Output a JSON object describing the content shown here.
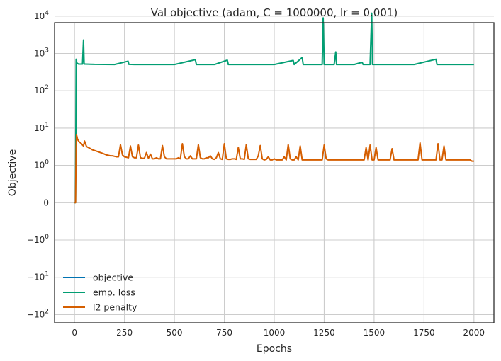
{
  "chart_data": {
    "type": "line",
    "title": "Val objective (adam, C = 1000000, lr = 0.001)",
    "xlabel": "Epochs",
    "ylabel": "Objective",
    "xlim": [
      -100,
      2100
    ],
    "x_ticks": [
      0,
      250,
      500,
      750,
      1000,
      1250,
      1500,
      1750,
      2000
    ],
    "x_tick_labels": [
      "0",
      "250",
      "500",
      "750",
      "1000",
      "1250",
      "1500",
      "1750",
      "2000"
    ],
    "y_scale": "symlog",
    "y_ticks": [
      10000,
      1000,
      100,
      10,
      1,
      0,
      -1,
      -10,
      -100
    ],
    "y_tick_labels": [
      {
        "base": "10",
        "exp": "4"
      },
      {
        "base": "10",
        "exp": "3"
      },
      {
        "base": "10",
        "exp": "2"
      },
      {
        "base": "10",
        "exp": "1"
      },
      {
        "base": "10",
        "exp": "0"
      },
      {
        "base": "0",
        "exp": ""
      },
      {
        "base": "−10",
        "exp": "0"
      },
      {
        "base": "−10",
        "exp": "1"
      },
      {
        "base": "−10",
        "exp": "2"
      }
    ],
    "grid": true,
    "legend_position": "lower-left",
    "series": [
      {
        "name": "objective",
        "color": "#0173b2",
        "x": [],
        "y": []
      },
      {
        "name": "emp. loss",
        "color": "#029e73",
        "x": [
          0,
          5,
          8,
          12,
          20,
          40,
          45,
          48,
          55,
          100,
          200,
          268,
          272,
          300,
          400,
          500,
          605,
          610,
          700,
          765,
          770,
          800,
          900,
          1000,
          1095,
          1100,
          1140,
          1145,
          1200,
          1240,
          1245,
          1250,
          1300,
          1308,
          1312,
          1400,
          1440,
          1445,
          1480,
          1488,
          1492,
          1500,
          1600,
          1700,
          1810,
          1815,
          1900,
          2000
        ],
        "y": [
          0,
          0,
          700,
          550,
          520,
          520,
          2300,
          520,
          520,
          510,
          505,
          620,
          510,
          505,
          505,
          505,
          680,
          505,
          505,
          660,
          505,
          505,
          505,
          505,
          650,
          505,
          780,
          505,
          505,
          505,
          9000,
          505,
          505,
          1100,
          505,
          505,
          580,
          505,
          505,
          12000,
          505,
          505,
          505,
          505,
          700,
          505,
          505,
          505
        ]
      },
      {
        "name": "l2 penalty",
        "color": "#d55e00",
        "x": [
          0,
          5,
          8,
          10,
          12,
          15,
          20,
          25,
          30,
          35,
          40,
          45,
          50,
          60,
          70,
          80,
          90,
          100,
          110,
          120,
          130,
          140,
          150,
          160,
          170,
          180,
          190,
          200,
          210,
          220,
          230,
          240,
          250,
          260,
          270,
          280,
          290,
          300,
          310,
          320,
          330,
          340,
          350,
          360,
          370,
          380,
          390,
          400,
          410,
          420,
          430,
          440,
          450,
          460,
          470,
          480,
          490,
          500,
          510,
          520,
          530,
          540,
          550,
          560,
          570,
          580,
          590,
          600,
          610,
          620,
          630,
          640,
          650,
          660,
          670,
          680,
          690,
          700,
          710,
          720,
          730,
          740,
          750,
          760,
          770,
          780,
          790,
          800,
          810,
          820,
          830,
          840,
          850,
          860,
          870,
          880,
          890,
          900,
          910,
          920,
          930,
          940,
          950,
          960,
          970,
          980,
          990,
          1000,
          1010,
          1020,
          1030,
          1040,
          1050,
          1060,
          1070,
          1080,
          1090,
          1100,
          1110,
          1120,
          1130,
          1140,
          1150,
          1160,
          1170,
          1180,
          1190,
          1200,
          1210,
          1220,
          1230,
          1240,
          1250,
          1260,
          1270,
          1280,
          1290,
          1300,
          1310,
          1320,
          1330,
          1340,
          1350,
          1360,
          1370,
          1380,
          1390,
          1400,
          1410,
          1420,
          1430,
          1440,
          1450,
          1460,
          1470,
          1480,
          1490,
          1500,
          1510,
          1520,
          1530,
          1540,
          1550,
          1560,
          1570,
          1580,
          1590,
          1600,
          1610,
          1620,
          1630,
          1640,
          1650,
          1660,
          1670,
          1680,
          1690,
          1700,
          1710,
          1720,
          1730,
          1740,
          1750,
          1760,
          1770,
          1780,
          1790,
          1800,
          1810,
          1820,
          1830,
          1840,
          1850,
          1860,
          1870,
          1880,
          1890,
          1900,
          1910,
          1920,
          1930,
          1940,
          1950,
          1960,
          1970,
          1980,
          1990,
          2000
        ],
        "y": [
          0,
          0,
          3,
          6.5,
          6,
          5,
          4.5,
          4.2,
          4,
          3.8,
          3.5,
          3.3,
          4.5,
          3.2,
          3,
          2.8,
          2.6,
          2.5,
          2.4,
          2.3,
          2.2,
          2.1,
          2.0,
          1.9,
          1.85,
          1.8,
          1.8,
          1.75,
          1.7,
          1.7,
          3.6,
          1.9,
          1.7,
          1.65,
          1.6,
          3.3,
          1.7,
          1.6,
          1.6,
          3.5,
          1.6,
          1.55,
          1.55,
          2.2,
          1.55,
          2.0,
          1.5,
          1.5,
          1.6,
          1.5,
          1.5,
          3.4,
          1.7,
          1.5,
          1.5,
          1.5,
          1.5,
          1.5,
          1.5,
          1.6,
          1.5,
          3.8,
          1.7,
          1.5,
          1.5,
          1.8,
          1.5,
          1.5,
          1.5,
          3.6,
          1.6,
          1.5,
          1.5,
          1.6,
          1.6,
          1.8,
          1.5,
          1.45,
          1.6,
          2.2,
          1.5,
          1.45,
          3.8,
          1.5,
          1.45,
          1.45,
          1.5,
          1.5,
          1.45,
          3.0,
          1.5,
          1.5,
          1.45,
          3.6,
          1.5,
          1.45,
          1.45,
          1.45,
          1.45,
          1.8,
          3.4,
          1.5,
          1.4,
          1.45,
          1.7,
          1.4,
          1.4,
          1.5,
          1.4,
          1.4,
          1.4,
          1.4,
          1.7,
          1.4,
          3.6,
          1.5,
          1.4,
          1.4,
          1.7,
          1.4,
          3.3,
          1.4,
          1.4,
          1.4,
          1.4,
          1.4,
          1.4,
          1.4,
          1.4,
          1.4,
          1.4,
          1.4,
          3.5,
          1.5,
          1.4,
          1.4,
          1.4,
          1.4,
          1.4,
          1.4,
          1.4,
          1.4,
          1.4,
          1.4,
          1.4,
          1.4,
          1.4,
          1.4,
          1.4,
          1.4,
          1.4,
          1.4,
          1.4,
          3.0,
          1.4,
          3.5,
          1.4,
          1.4,
          3.0,
          1.4,
          1.4,
          1.4,
          1.4,
          1.4,
          1.4,
          1.4,
          2.8,
          1.4,
          1.4,
          1.4,
          1.4,
          1.4,
          1.4,
          1.4,
          1.4,
          1.4,
          1.4,
          1.4,
          1.4,
          1.4,
          4.0,
          1.4,
          1.4,
          1.4,
          1.4,
          1.4,
          1.4,
          1.4,
          1.4,
          3.8,
          1.4,
          1.4,
          3.3,
          1.4,
          1.4,
          1.4,
          1.4,
          1.4,
          1.4,
          1.4,
          1.4,
          1.4,
          1.4,
          1.4,
          1.4,
          1.4,
          1.3,
          1.3
        ]
      }
    ]
  }
}
